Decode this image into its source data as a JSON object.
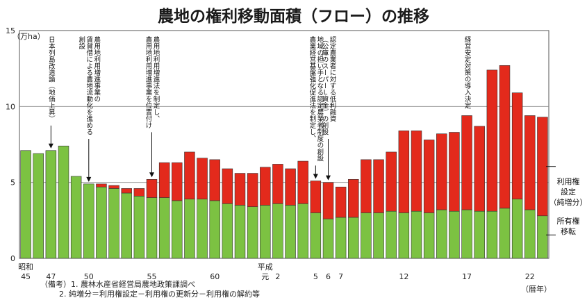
{
  "title": "農地の権利移動面積（フロー）の推移",
  "chart_data": {
    "type": "bar",
    "stacked": true,
    "title": "農地の権利移動面積（フロー）の推移",
    "ylabel": "（万ha）",
    "xlabel": "（暦年）",
    "ylim": [
      0,
      15
    ],
    "yticks": [
      0,
      5,
      10,
      15
    ],
    "grid": true,
    "x_tick_labels": [
      {
        "i": 0,
        "lines": [
          "昭和",
          "45"
        ]
      },
      {
        "i": 2,
        "lines": [
          "47"
        ]
      },
      {
        "i": 5,
        "lines": [
          "50"
        ]
      },
      {
        "i": 10,
        "lines": [
          "55"
        ]
      },
      {
        "i": 15,
        "lines": [
          "60"
        ]
      },
      {
        "i": 19,
        "lines": [
          "平成",
          "元"
        ]
      },
      {
        "i": 20,
        "lines": [
          "2"
        ]
      },
      {
        "i": 23,
        "lines": [
          "5"
        ]
      },
      {
        "i": 24,
        "lines": [
          "6"
        ]
      },
      {
        "i": 25,
        "lines": [
          "7"
        ]
      },
      {
        "i": 30,
        "lines": [
          "12"
        ]
      },
      {
        "i": 35,
        "lines": [
          "17"
        ]
      },
      {
        "i": 40,
        "lines": [
          "22"
        ]
      }
    ],
    "series": [
      {
        "name": "所有権移転",
        "color": "#7cc242",
        "values": [
          7.1,
          6.9,
          7.1,
          7.4,
          5.4,
          4.9,
          4.7,
          4.6,
          4.3,
          4.1,
          4.0,
          4.0,
          3.8,
          3.9,
          3.9,
          3.8,
          3.6,
          3.5,
          3.4,
          3.5,
          3.6,
          3.5,
          3.6,
          3.0,
          2.6,
          2.7,
          2.7,
          3.0,
          3.0,
          3.1,
          3.0,
          3.1,
          3.0,
          3.2,
          3.1,
          3.2,
          3.1,
          3.1,
          3.3,
          3.9,
          3.2,
          2.8
        ]
      },
      {
        "name": "利用権設定（純増分）",
        "color": "#e32a1c",
        "values": [
          0,
          0,
          0,
          0,
          0,
          0,
          0.2,
          0.2,
          0.3,
          0.5,
          1.2,
          2.3,
          2.5,
          3.1,
          2.7,
          2.7,
          2.3,
          2.1,
          2.2,
          2.5,
          2.6,
          2.4,
          2.8,
          2.1,
          2.4,
          2.0,
          2.5,
          3.5,
          3.5,
          3.9,
          5.4,
          5.3,
          4.8,
          5.0,
          5.2,
          6.2,
          5.6,
          9.3,
          9.4,
          7.0,
          6.2,
          6.5
        ]
      }
    ],
    "side_labels": [
      {
        "series": 1,
        "lines": [
          "利用権",
          "設定",
          "（純増分）"
        ]
      },
      {
        "series": 0,
        "lines": [
          "所有権",
          "移転"
        ]
      }
    ],
    "annotations": [
      {
        "i": 2,
        "lines": [
          "日本列島改造論（地価上昇）"
        ]
      },
      {
        "i": 5,
        "lines": [
          "農用地利用増進事業の",
          "賃貸借による農地流動化を進める",
          "創設"
        ]
      },
      {
        "i": 10,
        "lines": [
          "農用地利用増進法を制定し、",
          "農用地利用増進事業を位置付け"
        ]
      },
      {
        "i": 23,
        "lines": [
          "地域の担い手となる認定農業者制度の創設",
          "農業経営基盤強化促進法を制定し、"
        ]
      },
      {
        "i": 24,
        "lines": [
          "認定農業者に対する低利融資",
          "（公庫のスーパーＬ資金）の創設"
        ]
      },
      {
        "i": 35,
        "lines": [
          "経営安定対策の導入決定"
        ]
      }
    ]
  },
  "notes": {
    "line1": "（備考）1. 農林水産省経営局農地政策課調べ",
    "line2": "2. 純増分＝利用権設定－利用権の更新分－利用権の解約等"
  }
}
